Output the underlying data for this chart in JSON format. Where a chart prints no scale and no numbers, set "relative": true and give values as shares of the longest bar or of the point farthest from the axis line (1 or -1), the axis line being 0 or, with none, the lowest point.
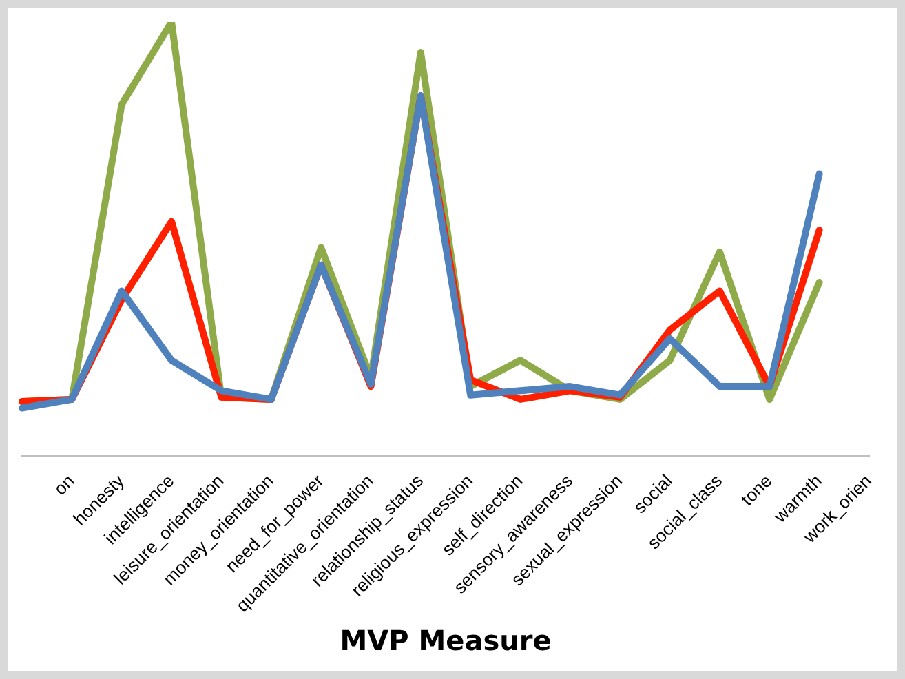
{
  "chart_data": {
    "type": "line",
    "relative": true,
    "xlabel": "MVP Measure",
    "grid": false,
    "legend": false,
    "marker": "none",
    "line_style": "solid",
    "categories": [
      null,
      "on",
      "honesty",
      "intelligence",
      "leisure_orientation",
      "money_orientation",
      "need_for_power",
      "quantitative_orientation",
      "relationship_status",
      "religious_expression",
      "self_direction",
      "sensory_awareness",
      "sexual_expression",
      "social",
      "social_class",
      "tone",
      "warmth",
      "work_orien"
    ],
    "series": [
      {
        "color": "#4f81bd",
        "values": [
          0.11,
          0.13,
          0.38,
          0.22,
          0.15,
          0.13,
          0.44,
          0.165,
          0.83,
          0.14,
          0.15,
          0.16,
          0.14,
          0.27,
          0.16,
          0.16,
          0.65,
          null
        ]
      },
      {
        "color": "#ff2000",
        "values": [
          0.125,
          0.13,
          0.36,
          0.54,
          0.135,
          0.13,
          0.44,
          0.16,
          0.83,
          0.175,
          0.13,
          0.15,
          0.135,
          0.29,
          0.38,
          0.16,
          0.52,
          null
        ]
      },
      {
        "color": "#8faa48",
        "values": [
          0.125,
          0.13,
          0.81,
          1,
          0.135,
          0.13,
          0.48,
          0.18,
          0.93,
          0.16,
          0.22,
          0.15,
          0.13,
          0.22,
          0.47,
          0.13,
          0.4,
          null
        ]
      }
    ]
  }
}
